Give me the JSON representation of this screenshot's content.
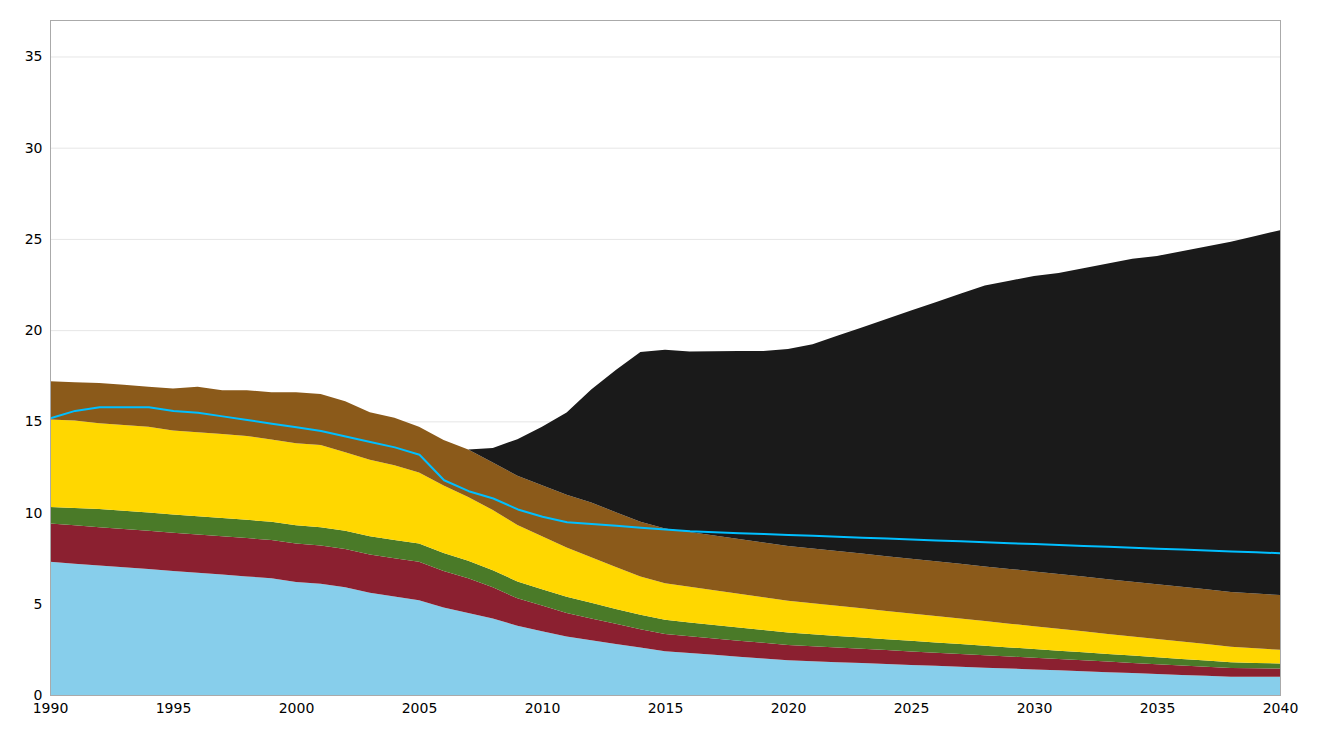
{
  "chart_data": {
    "type": "area",
    "stacked": true,
    "grid": true,
    "x": [
      1990,
      1991,
      1992,
      1993,
      1994,
      1995,
      1996,
      1997,
      1998,
      1999,
      2000,
      2001,
      2002,
      2003,
      2004,
      2005,
      2006,
      2007,
      2008,
      2009,
      2010,
      2011,
      2012,
      2013,
      2014,
      2015,
      2016,
      2017,
      2018,
      2019,
      2020,
      2021,
      2022,
      2023,
      2024,
      2025,
      2026,
      2027,
      2028,
      2029,
      2030,
      2031,
      2032,
      2033,
      2034,
      2035,
      2036,
      2037,
      2038,
      2039,
      2040
    ],
    "xlim": [
      1990,
      2040
    ],
    "xticks": [
      1990,
      1995,
      2000,
      2005,
      2010,
      2015,
      2020,
      2025,
      2030,
      2035,
      2040
    ],
    "ylim": [
      0,
      37
    ],
    "yticks": [
      0,
      5,
      10,
      15,
      20,
      25,
      30,
      35
    ],
    "series": [
      {
        "type": "area",
        "color": "#87CEEB",
        "values": [
          7.3,
          7.2,
          7.1,
          7.0,
          6.9,
          6.8,
          6.7,
          6.6,
          6.5,
          6.4,
          6.2,
          6.1,
          5.9,
          5.6,
          5.4,
          5.2,
          4.8,
          4.5,
          4.2,
          3.8,
          3.5,
          3.2,
          3.0,
          2.8,
          2.6,
          2.4,
          2.3,
          2.2,
          2.1,
          2.0,
          1.9,
          1.85,
          1.8,
          1.75,
          1.7,
          1.65,
          1.6,
          1.55,
          1.5,
          1.45,
          1.4,
          1.35,
          1.3,
          1.25,
          1.2,
          1.15,
          1.1,
          1.05,
          1.0,
          1.0,
          1.0
        ]
      },
      {
        "type": "area",
        "color": "#8B2030",
        "values": [
          2.1,
          2.1,
          2.1,
          2.1,
          2.1,
          2.1,
          2.1,
          2.1,
          2.1,
          2.1,
          2.1,
          2.1,
          2.1,
          2.1,
          2.1,
          2.1,
          2.0,
          1.9,
          1.7,
          1.5,
          1.4,
          1.3,
          1.2,
          1.1,
          1.0,
          0.95,
          0.92,
          0.9,
          0.88,
          0.86,
          0.84,
          0.82,
          0.8,
          0.78,
          0.76,
          0.74,
          0.72,
          0.7,
          0.68,
          0.66,
          0.64,
          0.62,
          0.6,
          0.58,
          0.56,
          0.54,
          0.52,
          0.5,
          0.48,
          0.46,
          0.45
        ]
      },
      {
        "type": "area",
        "color": "#4A7A28",
        "values": [
          0.9,
          0.95,
          1.0,
          1.0,
          1.0,
          1.0,
          1.0,
          1.0,
          1.0,
          1.0,
          1.0,
          1.0,
          1.0,
          1.0,
          1.0,
          1.0,
          0.98,
          0.96,
          0.94,
          0.92,
          0.9,
          0.88,
          0.85,
          0.82,
          0.8,
          0.78,
          0.76,
          0.74,
          0.72,
          0.7,
          0.68,
          0.66,
          0.64,
          0.62,
          0.6,
          0.58,
          0.56,
          0.54,
          0.52,
          0.5,
          0.48,
          0.46,
          0.44,
          0.42,
          0.4,
          0.38,
          0.36,
          0.34,
          0.32,
          0.3,
          0.28
        ]
      },
      {
        "type": "area",
        "color": "#FFD700",
        "values": [
          4.8,
          4.8,
          4.7,
          4.7,
          4.7,
          4.6,
          4.6,
          4.6,
          4.6,
          4.5,
          4.5,
          4.5,
          4.3,
          4.2,
          4.1,
          3.9,
          3.7,
          3.5,
          3.3,
          3.1,
          2.9,
          2.7,
          2.5,
          2.3,
          2.1,
          2.0,
          1.95,
          1.9,
          1.85,
          1.8,
          1.75,
          1.7,
          1.65,
          1.6,
          1.55,
          1.5,
          1.45,
          1.4,
          1.35,
          1.3,
          1.25,
          1.2,
          1.15,
          1.1,
          1.05,
          1.0,
          0.95,
          0.9,
          0.85,
          0.8,
          0.75
        ]
      },
      {
        "type": "area",
        "color": "#8B5A1A",
        "values": [
          2.1,
          2.1,
          2.2,
          2.2,
          2.2,
          2.3,
          2.5,
          2.4,
          2.5,
          2.6,
          2.8,
          2.8,
          2.8,
          2.6,
          2.6,
          2.5,
          2.5,
          2.6,
          2.6,
          2.7,
          2.8,
          2.9,
          3.0,
          3.0,
          3.0,
          3.0,
          3.0,
          3.0,
          3.0,
          3.0,
          3.0,
          3.0,
          3.0,
          3.0,
          3.0,
          3.0,
          3.0,
          3.0,
          3.0,
          3.0,
          3.0,
          3.0,
          3.0,
          3.0,
          3.0,
          3.0,
          3.0,
          3.0,
          3.0,
          3.0,
          3.0
        ]
      },
      {
        "type": "area",
        "color": "#1A1A1A",
        "values": [
          0.0,
          0.0,
          0.0,
          0.0,
          0.0,
          0.0,
          0.0,
          0.0,
          0.0,
          0.0,
          0.0,
          0.0,
          0.0,
          0.0,
          0.0,
          0.0,
          0.0,
          0.0,
          0.8,
          2.0,
          3.2,
          4.5,
          6.2,
          7.8,
          9.3,
          9.8,
          9.9,
          10.1,
          10.3,
          10.5,
          10.8,
          11.2,
          11.8,
          12.4,
          13.0,
          13.6,
          14.2,
          14.8,
          15.4,
          15.8,
          16.2,
          16.5,
          16.9,
          17.3,
          17.7,
          18.0,
          18.4,
          18.8,
          19.2,
          19.6,
          20.0
        ]
      },
      {
        "type": "line",
        "color": "#00BFFF",
        "values": [
          15.2,
          15.6,
          15.8,
          15.8,
          15.8,
          15.6,
          15.5,
          15.3,
          15.1,
          14.9,
          14.7,
          14.5,
          14.2,
          13.9,
          13.6,
          13.2,
          11.8,
          11.2,
          10.8,
          10.2,
          9.8,
          9.5,
          9.4,
          9.3,
          9.2,
          9.1,
          9.0,
          8.95,
          8.9,
          8.85,
          8.8,
          8.75,
          8.7,
          8.65,
          8.6,
          8.55,
          8.5,
          8.45,
          8.4,
          8.35,
          8.3,
          8.25,
          8.2,
          8.15,
          8.1,
          8.05,
          8.0,
          7.95,
          7.9,
          7.85,
          7.8
        ]
      }
    ]
  }
}
